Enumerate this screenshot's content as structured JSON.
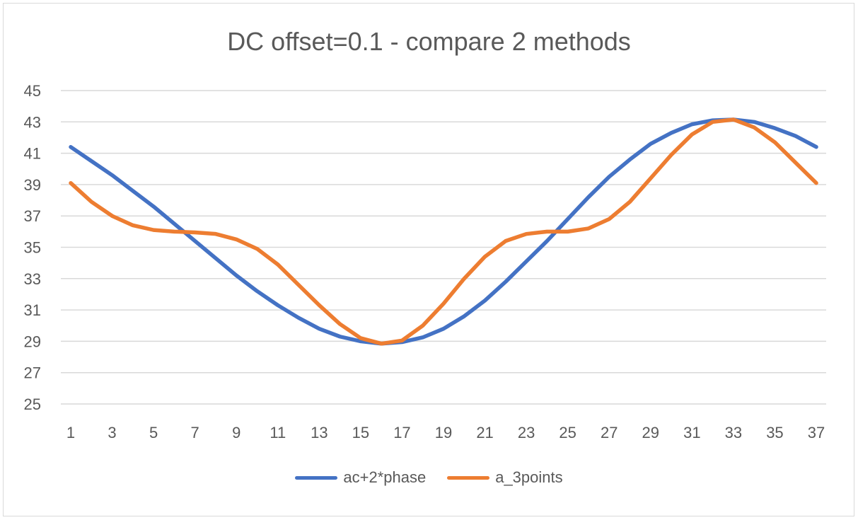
{
  "chart_data": {
    "type": "line",
    "title": "DC offset=0.1 - compare 2 methods",
    "xlabel": "",
    "ylabel": "",
    "ylim": [
      25,
      45
    ],
    "yticks": [
      25,
      27,
      29,
      31,
      33,
      35,
      37,
      39,
      41,
      43,
      45
    ],
    "x": [
      1,
      2,
      3,
      4,
      5,
      6,
      7,
      8,
      9,
      10,
      11,
      12,
      13,
      14,
      15,
      16,
      17,
      18,
      19,
      20,
      21,
      22,
      23,
      24,
      25,
      26,
      27,
      28,
      29,
      30,
      31,
      32,
      33,
      34,
      35,
      36,
      37
    ],
    "xtick_labels": [
      "1",
      "3",
      "5",
      "7",
      "9",
      "11",
      "13",
      "15",
      "17",
      "19",
      "21",
      "23",
      "25",
      "27",
      "29",
      "31",
      "33",
      "35",
      "37"
    ],
    "grid": "horizontal",
    "legend_position": "bottom",
    "series": [
      {
        "name": "ac+2*phase",
        "color": "#4472C4",
        "values": [
          41.4,
          40.5,
          39.6,
          38.6,
          37.6,
          36.5,
          35.4,
          34.3,
          33.2,
          32.2,
          31.3,
          30.5,
          29.8,
          29.3,
          29.0,
          28.85,
          28.95,
          29.25,
          29.8,
          30.6,
          31.6,
          32.8,
          34.1,
          35.4,
          36.8,
          38.2,
          39.5,
          40.6,
          41.6,
          42.3,
          42.85,
          43.1,
          43.15,
          43.0,
          42.6,
          42.1,
          41.4
        ]
      },
      {
        "name": "a_3points",
        "color": "#ED7D31",
        "values": [
          39.1,
          37.9,
          37.0,
          36.4,
          36.1,
          36.0,
          35.95,
          35.85,
          35.5,
          34.9,
          33.9,
          32.6,
          31.3,
          30.1,
          29.2,
          28.85,
          29.05,
          30.0,
          31.4,
          33.0,
          34.4,
          35.4,
          35.85,
          36.0,
          36.0,
          36.2,
          36.8,
          37.9,
          39.4,
          40.9,
          42.2,
          43.0,
          43.15,
          42.65,
          41.7,
          40.4,
          39.1
        ]
      }
    ]
  }
}
